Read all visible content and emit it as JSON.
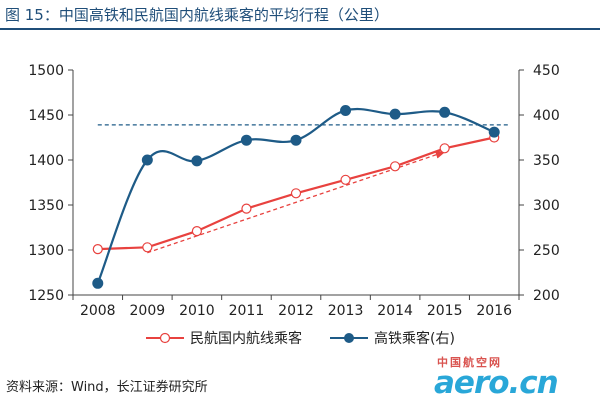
{
  "title": "图  15：中国高铁和民航国内航线乘客的平均行程（公里）",
  "source": "资料来源：Wind，长江证券研究所",
  "watermark": {
    "cn": "中国航空网",
    "en": "aero.cn"
  },
  "chart_data": {
    "type": "line",
    "categories": [
      "2008",
      "2009",
      "2010",
      "2011",
      "2012",
      "2013",
      "2014",
      "2015",
      "2016"
    ],
    "ylim_left": [
      1250,
      1500
    ],
    "yticks_left": [
      "1500",
      "1450",
      "1400",
      "1350",
      "1300",
      "1250"
    ],
    "ylim_right": [
      200,
      450
    ],
    "yticks_right": [
      "450",
      "400",
      "350",
      "300",
      "250",
      "200"
    ],
    "grid": false,
    "legend_position": "bottom",
    "series": [
      {
        "name": "民航国内航线乘客",
        "axis": "left",
        "color": "#e8423f",
        "marker": "hollow-circle",
        "values": [
          1301,
          1303,
          1321,
          1346,
          1363,
          1378,
          1393,
          1413,
          1425
        ]
      },
      {
        "name": "高铁乘客(右)",
        "axis": "right",
        "color": "#1e5b87",
        "marker": "filled-circle",
        "values": [
          213,
          350,
          349,
          372,
          372,
          405,
          401,
          403,
          381
        ]
      }
    ],
    "annotations": [
      {
        "kind": "dashed-trend-arrow",
        "color": "#e8423f",
        "from": [
          "2009",
          1297
        ],
        "to": [
          "2015",
          1409
        ]
      },
      {
        "kind": "dashed-horizontal-line",
        "color": "#1e5b87",
        "axis": "right",
        "value": 389,
        "from": "2008",
        "to": "2016"
      }
    ]
  }
}
